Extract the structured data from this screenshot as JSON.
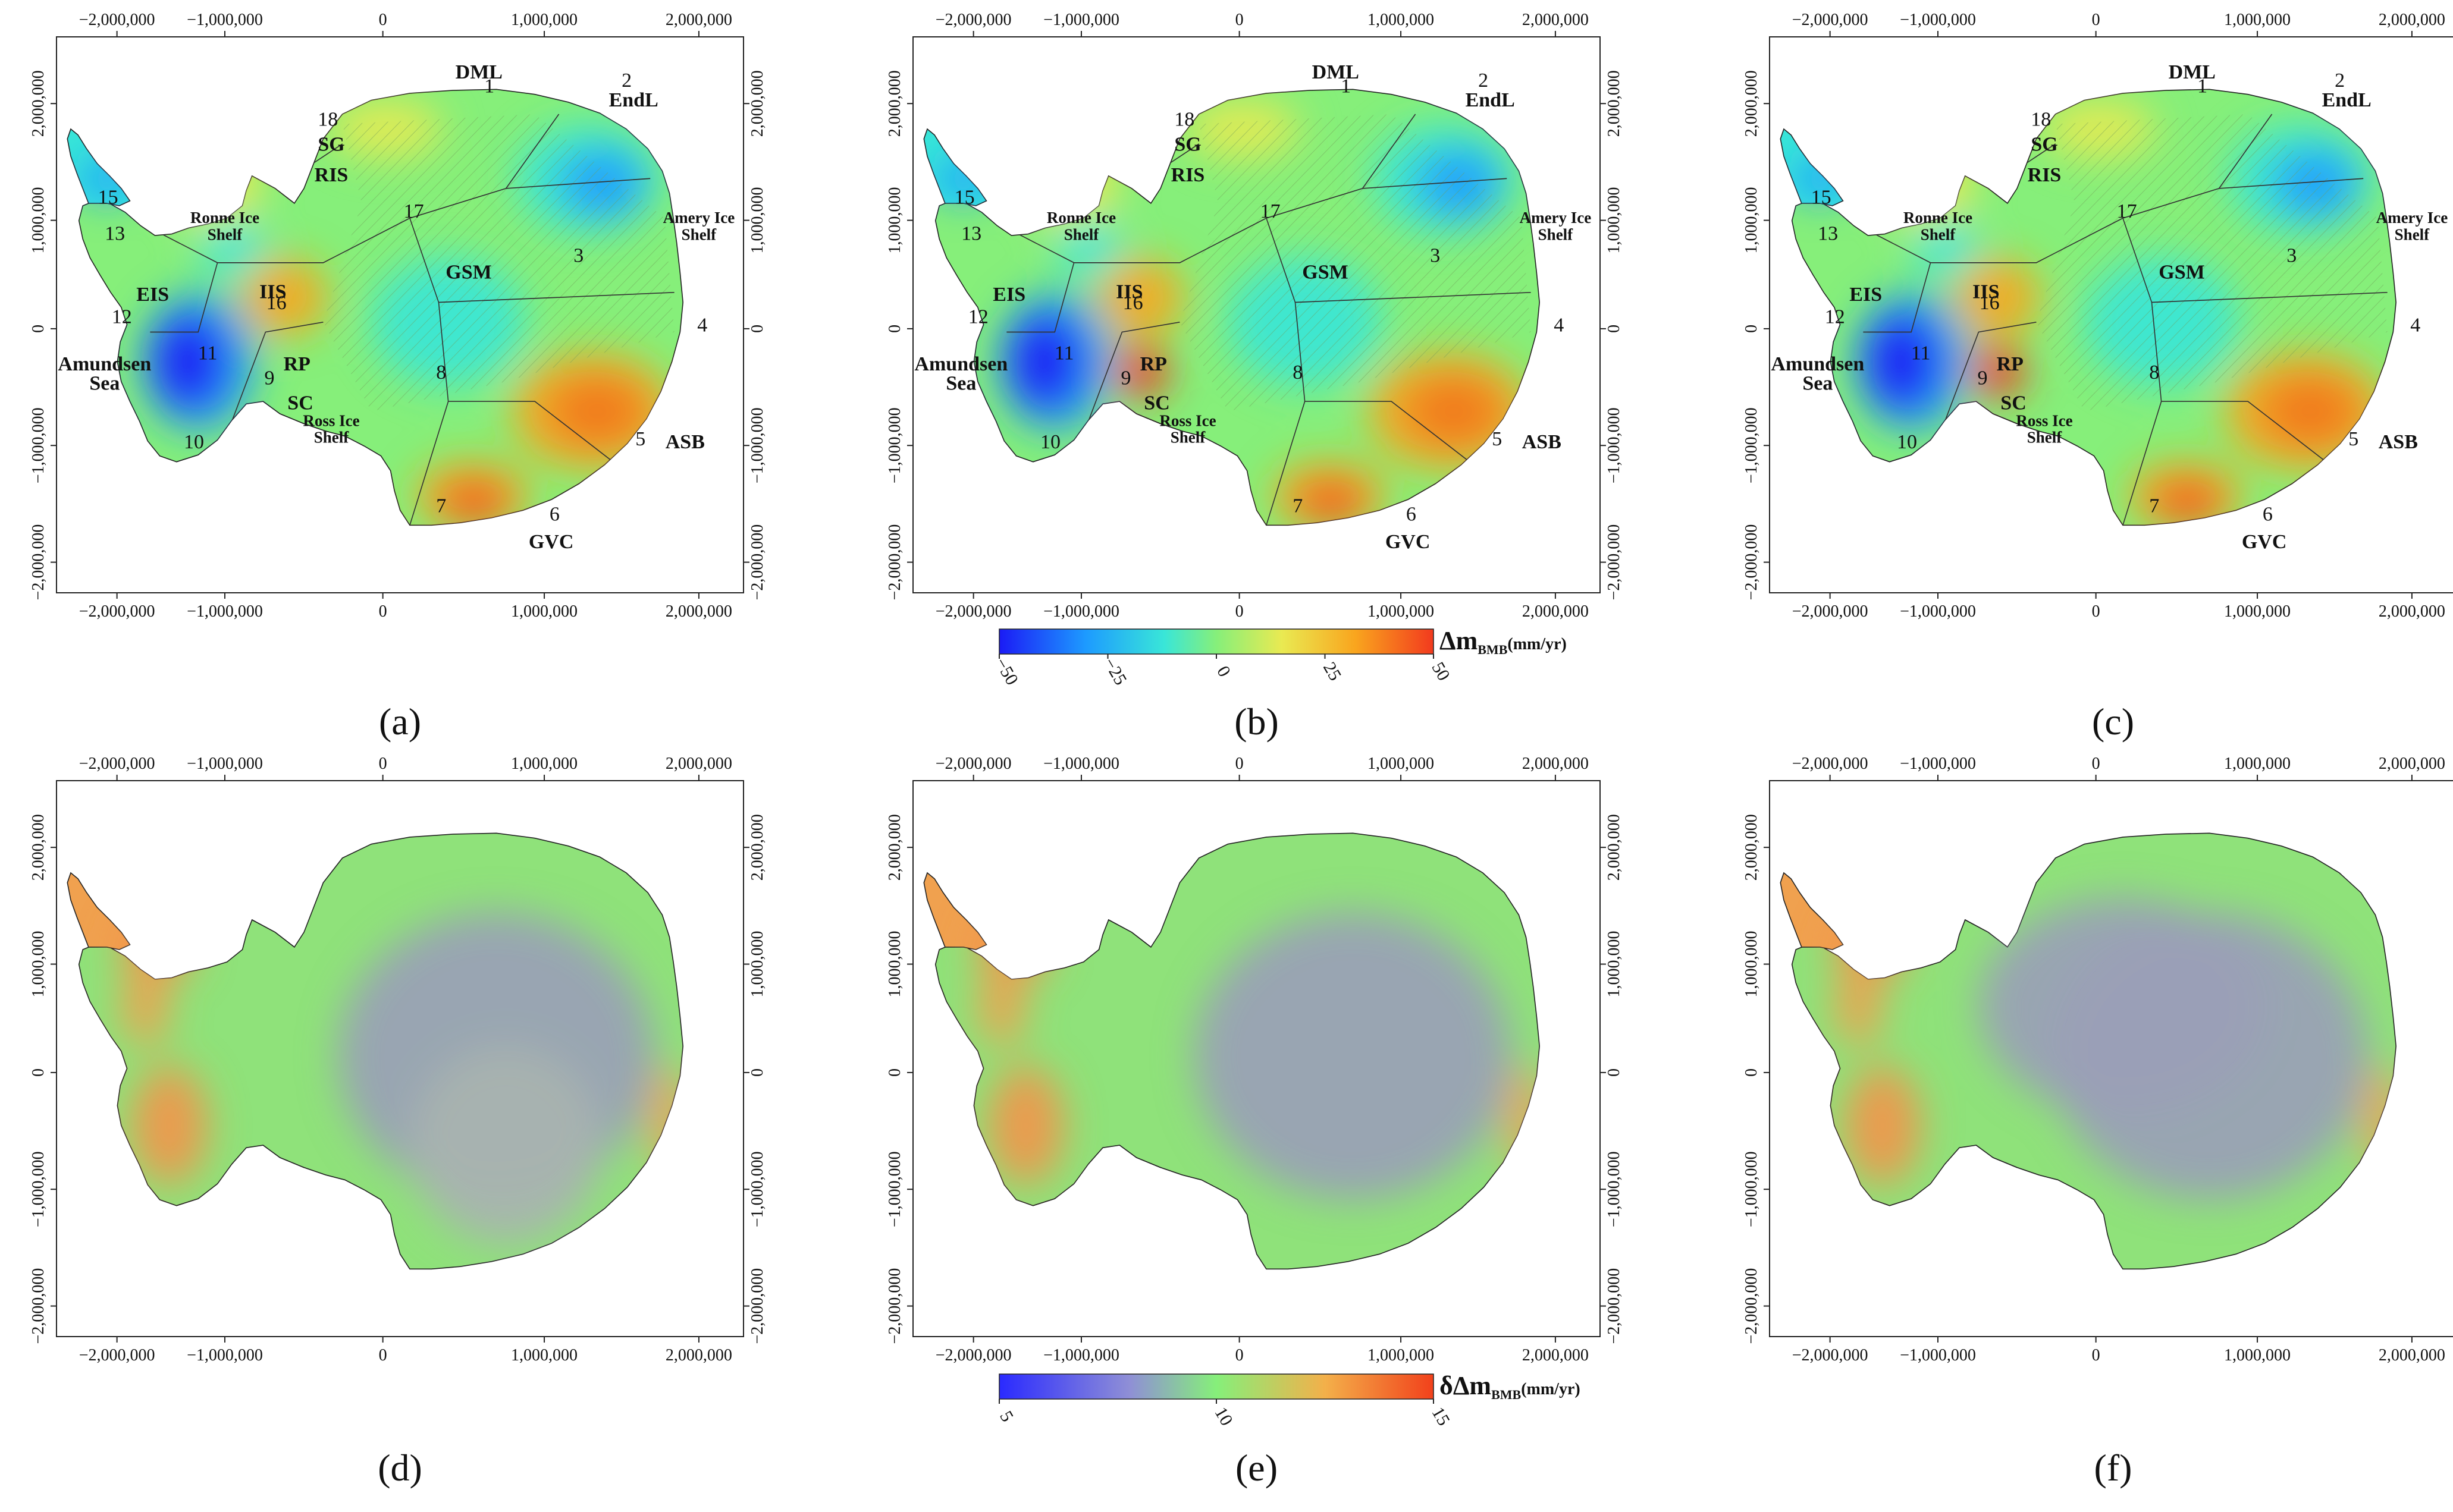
{
  "colors": {
    "bmb_scale": [
      "#1b1bf5",
      "#1d9bff",
      "#39e6d8",
      "#86ef7a",
      "#e9ea52",
      "#f9a51e",
      "#f23a1e"
    ],
    "unc_scale": [
      "#2a2aff",
      "#8f8fd6",
      "#86ef7a",
      "#f3b04a",
      "#f2411b"
    ],
    "basin_lines": "#333333",
    "hatch": "#9bb77f"
  },
  "axes": {
    "x_top": [
      "−2,000,000",
      "−1,000,000",
      "0",
      "1,000,000",
      "2,000,000"
    ],
    "x_bottom": [
      "−2,000,000",
      "−1,000,000",
      "0",
      "1,000,000",
      "2,000,000"
    ],
    "y_left": [
      "2,000,000",
      "1,000,000",
      "0",
      "−1,000,000",
      "−2,000,000"
    ],
    "y_right": [
      "2,000,000",
      "1,000,000",
      "0",
      "−1,000,000",
      "−2,000,000"
    ]
  },
  "labels_top": [
    "DML",
    "1",
    "2",
    "EndL",
    "18",
    "SG",
    "RIS",
    "17",
    "3",
    "Amery Ice",
    "Shelf",
    "Ronne Ice",
    "Shelf",
    "13",
    "GSM",
    "EIS",
    "IIS",
    "16",
    "4",
    "12",
    "11",
    "Amundsen",
    "Sea",
    "RP",
    "9",
    "8",
    "SC",
    "Ross Ice",
    "Shelf",
    "10",
    "5",
    "ASB",
    "7",
    "6",
    "GVC",
    "15"
  ],
  "panels": [
    {
      "caption": "(a)"
    },
    {
      "caption": "(b)"
    },
    {
      "caption": "(c)"
    },
    {
      "caption": "(d)"
    },
    {
      "caption": "(e)"
    },
    {
      "caption": "(f)"
    }
  ],
  "colorbar_top": {
    "ticks": [
      "−50",
      "−25",
      "0",
      "25",
      "50"
    ],
    "title_main": "Δm",
    "title_sub": "BMB",
    "title_unit": "(mm/yr)"
  },
  "colorbar_bottom": {
    "ticks": [
      "5",
      "10",
      "15"
    ],
    "title_main": "δΔm",
    "title_sub": "BMB",
    "title_unit": "(mm/yr)"
  }
}
